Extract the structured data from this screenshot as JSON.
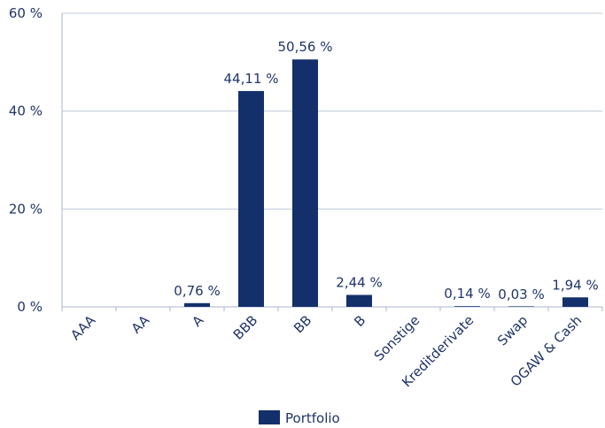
{
  "chart_data": {
    "type": "bar",
    "categories": [
      "AAA",
      "AA",
      "A",
      "BBB",
      "BB",
      "B",
      "Sonstige",
      "Kreditderivate",
      "Swap",
      "OGAW & Cash"
    ],
    "series": [
      {
        "name": "Portfolio",
        "values": [
          0,
          0,
          0.76,
          44.11,
          50.56,
          2.44,
          0,
          0.14,
          0.03,
          1.94
        ],
        "labels": [
          "",
          "",
          "0,76 %",
          "44,11 %",
          "50,56 %",
          "2,44 %",
          "",
          "0,14 %",
          "0,03 %",
          "1,94 %"
        ]
      }
    ],
    "yticks": [
      {
        "value": 0,
        "label": "0 %"
      },
      {
        "value": 20,
        "label": "20 %"
      },
      {
        "value": 40,
        "label": "40 %"
      },
      {
        "value": 60,
        "label": "60 %"
      }
    ],
    "ylim": [
      0,
      60
    ],
    "grid": true,
    "legend_position": "bottom",
    "colors": {
      "bar": "#14306b",
      "text": "#1f3468",
      "grid": "#bfc9da",
      "axis": "#a9b6cc"
    }
  }
}
